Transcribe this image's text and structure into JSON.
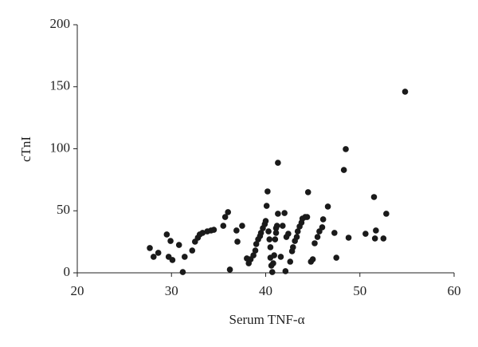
{
  "chart_data": {
    "type": "scatter",
    "x_label": "Serum TNF-α",
    "y_label": "cTnI",
    "color": "#1a1a1a",
    "x": [
      27.7,
      28.1,
      28.6,
      29.5,
      29.9,
      29.7,
      30.1,
      30.8,
      31.2,
      31.4,
      32.2,
      32.5,
      32.8,
      33.0,
      33.3,
      33.8,
      34.2,
      34.5,
      35.5,
      35.7,
      36.0,
      36.2,
      36.9,
      37.0,
      37.5,
      38.0,
      38.2,
      38.4,
      38.7,
      38.9,
      39.0,
      39.2,
      39.4,
      39.5,
      39.7,
      39.9,
      40.0,
      40.1,
      40.2,
      40.3,
      40.4,
      40.5,
      40.5,
      40.6,
      40.7,
      40.8,
      40.9,
      41.0,
      41.1,
      41.1,
      41.2,
      41.3,
      41.3,
      41.6,
      41.8,
      42.0,
      42.1,
      42.2,
      42.4,
      42.6,
      42.8,
      42.9,
      43.1,
      43.3,
      43.4,
      43.6,
      43.8,
      43.9,
      44.2,
      44.4,
      44.5,
      44.8,
      45.0,
      45.2,
      45.5,
      45.7,
      46.0,
      46.1,
      46.6,
      47.3,
      47.5,
      48.3,
      48.5,
      48.8,
      50.6,
      51.5,
      51.7,
      51.6,
      52.5,
      52.8,
      54.8
    ],
    "y": [
      20,
      12.9,
      16.1,
      30.9,
      25.7,
      12.9,
      10.3,
      22.5,
      0.6,
      12.9,
      18,
      25.1,
      28.3,
      30.9,
      32.2,
      33.4,
      34.1,
      34.7,
      37.9,
      45,
      48.9,
      2.6,
      34.1,
      25.1,
      37.9,
      11.6,
      7.7,
      10.9,
      14.1,
      18,
      23.2,
      27,
      29.6,
      32.2,
      36,
      39.2,
      41.8,
      54,
      65.6,
      33.4,
      27,
      20.6,
      12.2,
      5.8,
      0.6,
      7.7,
      14.1,
      27,
      32.2,
      36,
      37.9,
      88.7,
      47.6,
      12.9,
      37.9,
      48.2,
      1.3,
      28.9,
      31.5,
      9,
      17.4,
      20.6,
      25.7,
      28.9,
      33.4,
      37.3,
      40.5,
      43.7,
      45,
      45,
      65,
      9,
      10.9,
      23.8,
      28.9,
      33.4,
      36.7,
      43.1,
      53.4,
      32.2,
      12.2,
      82.9,
      99.7,
      28.3,
      31.5,
      61.1,
      34.1,
      27.7,
      27.7,
      47.6,
      146
    ],
    "xlim": [
      20,
      60
    ],
    "xticks": [
      20,
      30,
      40,
      50,
      60
    ],
    "ylim": [
      0,
      200
    ],
    "yticks": [
      0,
      50,
      100,
      150,
      200
    ]
  }
}
